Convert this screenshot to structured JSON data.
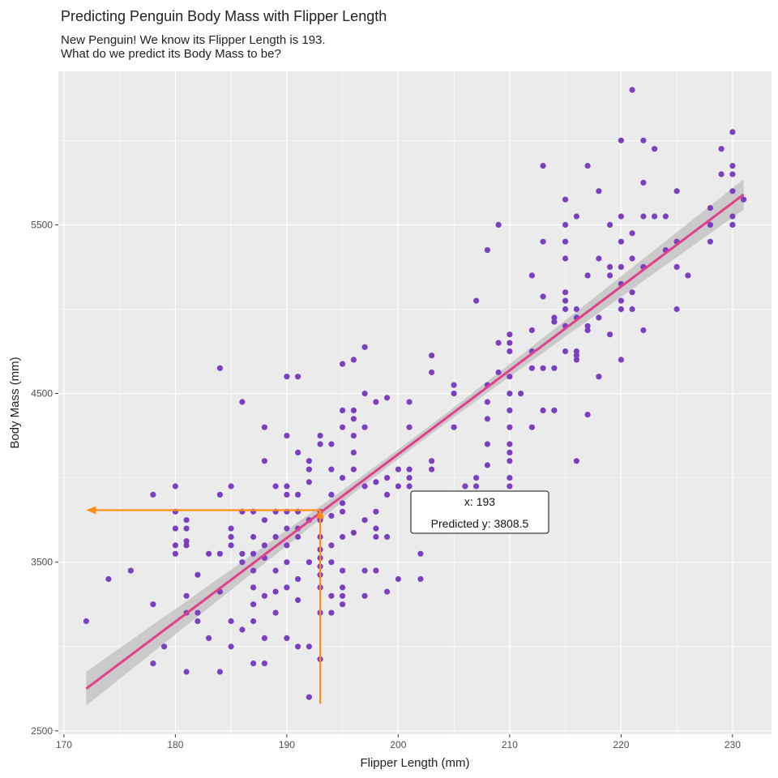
{
  "chart_data": {
    "type": "scatter",
    "title": "Predicting Penguin Body Mass with Flipper Length",
    "subtitle_lines": [
      "New Penguin! We know its Flipper Length is 193.",
      "What do we predict its Body Mass to be?"
    ],
    "xlabel": "Flipper Length (mm)",
    "ylabel": "Body Mass (mm)",
    "xlim": [
      169.5,
      233.5
    ],
    "ylim": [
      2480,
      6410
    ],
    "x_ticks": [
      170,
      180,
      190,
      200,
      210,
      220,
      230
    ],
    "y_ticks": [
      2500,
      3500,
      4500,
      5500
    ],
    "x_tick_labels": [
      "170",
      "180",
      "190",
      "200",
      "210",
      "220",
      "230"
    ],
    "y_tick_labels": [
      "2500",
      "3500",
      "4500",
      "5500"
    ],
    "grid": true,
    "colors": {
      "panel_bg": "#ebebeb",
      "grid": "#ffffff",
      "points": "#7b3fbf",
      "regression_line": "#e0408a",
      "confidence_band": "#c4c4c4",
      "prediction_arrows": "#ff8c1a"
    },
    "regression": {
      "x": [
        172,
        231
      ],
      "y": [
        2750,
        5680
      ],
      "band_halfwidth_ends": [
        100,
        90
      ],
      "band_halfwidth_center": 28
    },
    "prediction": {
      "x": 193,
      "y": 3808.5,
      "arrow_left_to_x": 172,
      "arrow_start_y": 2660
    },
    "annotation": {
      "line1": "x: 193",
      "line2": "Predicted y: 3808.5"
    },
    "points": [
      [
        172,
        3150
      ],
      [
        174,
        3400
      ],
      [
        176,
        3450
      ],
      [
        178,
        2900
      ],
      [
        178,
        3250
      ],
      [
        178,
        3900
      ],
      [
        179,
        3000
      ],
      [
        180,
        3550
      ],
      [
        180,
        3600
      ],
      [
        180,
        3700
      ],
      [
        180,
        3800
      ],
      [
        180,
        3950
      ],
      [
        181,
        2850
      ],
      [
        181,
        3200
      ],
      [
        181,
        3300
      ],
      [
        181,
        3600
      ],
      [
        181,
        3625
      ],
      [
        181,
        3700
      ],
      [
        181,
        3750
      ],
      [
        182,
        3150
      ],
      [
        182,
        3200
      ],
      [
        182,
        3425
      ],
      [
        183,
        3050
      ],
      [
        183,
        3550
      ],
      [
        184,
        2850
      ],
      [
        184,
        3325
      ],
      [
        184,
        3550
      ],
      [
        184,
        3900
      ],
      [
        184,
        4650
      ],
      [
        185,
        3000
      ],
      [
        185,
        3150
      ],
      [
        185,
        3600
      ],
      [
        185,
        3650
      ],
      [
        185,
        3700
      ],
      [
        185,
        3950
      ],
      [
        186,
        3100
      ],
      [
        186,
        3500
      ],
      [
        186,
        3550
      ],
      [
        186,
        3800
      ],
      [
        186,
        4450
      ],
      [
        187,
        2900
      ],
      [
        187,
        3150
      ],
      [
        187,
        3250
      ],
      [
        187,
        3350
      ],
      [
        187,
        3450
      ],
      [
        187,
        3550
      ],
      [
        187,
        3650
      ],
      [
        187,
        3800
      ],
      [
        188,
        2900
      ],
      [
        188,
        3050
      ],
      [
        188,
        3300
      ],
      [
        188,
        3525
      ],
      [
        188,
        3600
      ],
      [
        188,
        3750
      ],
      [
        188,
        4100
      ],
      [
        188,
        4300
      ],
      [
        189,
        3200
      ],
      [
        189,
        3325
      ],
      [
        189,
        3450
      ],
      [
        189,
        3650
      ],
      [
        189,
        3800
      ],
      [
        189,
        3950
      ],
      [
        190,
        3050
      ],
      [
        190,
        3350
      ],
      [
        190,
        3500
      ],
      [
        190,
        3600
      ],
      [
        190,
        3700
      ],
      [
        190,
        3800
      ],
      [
        190,
        3900
      ],
      [
        190,
        3950
      ],
      [
        190,
        4250
      ],
      [
        190,
        4600
      ],
      [
        191,
        3000
      ],
      [
        191,
        3275
      ],
      [
        191,
        3400
      ],
      [
        191,
        3650
      ],
      [
        191,
        3700
      ],
      [
        191,
        3800
      ],
      [
        191,
        3900
      ],
      [
        191,
        4150
      ],
      [
        191,
        4600
      ],
      [
        192,
        2700
      ],
      [
        192,
        3000
      ],
      [
        192,
        3500
      ],
      [
        192,
        3750
      ],
      [
        192,
        3975
      ],
      [
        192,
        4050
      ],
      [
        192,
        4100
      ],
      [
        193,
        2925
      ],
      [
        193,
        3200
      ],
      [
        193,
        3350
      ],
      [
        193,
        3425
      ],
      [
        193,
        3475
      ],
      [
        193,
        3525
      ],
      [
        193,
        3575
      ],
      [
        193,
        3650
      ],
      [
        193,
        3750
      ],
      [
        193,
        3800
      ],
      [
        193,
        4200
      ],
      [
        193,
        4250
      ],
      [
        194,
        3200
      ],
      [
        194,
        3300
      ],
      [
        194,
        3500
      ],
      [
        194,
        3600
      ],
      [
        194,
        3775
      ],
      [
        194,
        3900
      ],
      [
        194,
        4050
      ],
      [
        194,
        4200
      ],
      [
        195,
        3250
      ],
      [
        195,
        3300
      ],
      [
        195,
        3350
      ],
      [
        195,
        3450
      ],
      [
        195,
        3650
      ],
      [
        195,
        3800
      ],
      [
        195,
        3850
      ],
      [
        195,
        4000
      ],
      [
        195,
        4300
      ],
      [
        195,
        4400
      ],
      [
        195,
        4675
      ],
      [
        196,
        3675
      ],
      [
        196,
        4050
      ],
      [
        196,
        4150
      ],
      [
        196,
        4250
      ],
      [
        196,
        4350
      ],
      [
        196,
        4400
      ],
      [
        196,
        4700
      ],
      [
        197,
        3300
      ],
      [
        197,
        3450
      ],
      [
        197,
        3750
      ],
      [
        197,
        3950
      ],
      [
        197,
        4300
      ],
      [
        197,
        4500
      ],
      [
        197,
        4775
      ],
      [
        198,
        3450
      ],
      [
        198,
        3650
      ],
      [
        198,
        3700
      ],
      [
        198,
        3800
      ],
      [
        198,
        3975
      ],
      [
        198,
        4450
      ],
      [
        199,
        3325
      ],
      [
        199,
        3650
      ],
      [
        199,
        3900
      ],
      [
        199,
        4000
      ],
      [
        199,
        4475
      ],
      [
        200,
        3400
      ],
      [
        200,
        3950
      ],
      [
        200,
        4050
      ],
      [
        201,
        3950
      ],
      [
        201,
        4000
      ],
      [
        201,
        4050
      ],
      [
        201,
        4300
      ],
      [
        201,
        4450
      ],
      [
        202,
        3400
      ],
      [
        202,
        3550
      ],
      [
        203,
        4050
      ],
      [
        203,
        4100
      ],
      [
        203,
        4625
      ],
      [
        203,
        4725
      ],
      [
        205,
        4300
      ],
      [
        205,
        4500
      ],
      [
        205,
        4550
      ],
      [
        206,
        3950
      ],
      [
        207,
        3950
      ],
      [
        207,
        4000
      ],
      [
        207,
        5050
      ],
      [
        208,
        4075
      ],
      [
        208,
        4200
      ],
      [
        208,
        4350
      ],
      [
        208,
        4450
      ],
      [
        208,
        4550
      ],
      [
        208,
        5350
      ],
      [
        209,
        3900
      ],
      [
        209,
        4625
      ],
      [
        209,
        4800
      ],
      [
        209,
        5500
      ],
      [
        210,
        3950
      ],
      [
        210,
        4000
      ],
      [
        210,
        4100
      ],
      [
        210,
        4150
      ],
      [
        210,
        4200
      ],
      [
        210,
        4300
      ],
      [
        210,
        4400
      ],
      [
        210,
        4500
      ],
      [
        210,
        4600
      ],
      [
        210,
        4750
      ],
      [
        210,
        4800
      ],
      [
        210,
        4850
      ],
      [
        211,
        4500
      ],
      [
        212,
        4300
      ],
      [
        212,
        4650
      ],
      [
        212,
        4750
      ],
      [
        212,
        4875
      ],
      [
        212,
        5200
      ],
      [
        213,
        4400
      ],
      [
        213,
        4650
      ],
      [
        213,
        5075
      ],
      [
        213,
        5400
      ],
      [
        213,
        5850
      ],
      [
        214,
        4400
      ],
      [
        214,
        4650
      ],
      [
        214,
        4925
      ],
      [
        214,
        4950
      ],
      [
        215,
        4750
      ],
      [
        215,
        4900
      ],
      [
        215,
        5000
      ],
      [
        215,
        5050
      ],
      [
        215,
        5100
      ],
      [
        215,
        5300
      ],
      [
        215,
        5400
      ],
      [
        215,
        5500
      ],
      [
        215,
        5650
      ],
      [
        216,
        4100
      ],
      [
        216,
        4700
      ],
      [
        216,
        4725
      ],
      [
        216,
        4750
      ],
      [
        216,
        4950
      ],
      [
        216,
        5000
      ],
      [
        216,
        5550
      ],
      [
        217,
        4375
      ],
      [
        217,
        4875
      ],
      [
        217,
        4900
      ],
      [
        217,
        5200
      ],
      [
        217,
        5850
      ],
      [
        218,
        4600
      ],
      [
        218,
        4950
      ],
      [
        218,
        5300
      ],
      [
        218,
        5700
      ],
      [
        219,
        4850
      ],
      [
        219,
        5200
      ],
      [
        219,
        5250
      ],
      [
        219,
        5500
      ],
      [
        220,
        4700
      ],
      [
        220,
        5000
      ],
      [
        220,
        5050
      ],
      [
        220,
        5150
      ],
      [
        220,
        5250
      ],
      [
        220,
        5400
      ],
      [
        220,
        5550
      ],
      [
        220,
        6000
      ],
      [
        221,
        5000
      ],
      [
        221,
        5100
      ],
      [
        221,
        5300
      ],
      [
        221,
        5450
      ],
      [
        221,
        6300
      ],
      [
        222,
        4875
      ],
      [
        222,
        5250
      ],
      [
        222,
        5550
      ],
      [
        222,
        5750
      ],
      [
        222,
        6000
      ],
      [
        223,
        5550
      ],
      [
        223,
        5950
      ],
      [
        224,
        5350
      ],
      [
        224,
        5550
      ],
      [
        225,
        5000
      ],
      [
        225,
        5250
      ],
      [
        225,
        5400
      ],
      [
        225,
        5700
      ],
      [
        226,
        5200
      ],
      [
        228,
        5400
      ],
      [
        228,
        5500
      ],
      [
        228,
        5600
      ],
      [
        229,
        5800
      ],
      [
        229,
        5950
      ],
      [
        230,
        5500
      ],
      [
        230,
        5550
      ],
      [
        230,
        5700
      ],
      [
        230,
        5800
      ],
      [
        230,
        5850
      ],
      [
        230,
        6050
      ],
      [
        231,
        5650
      ]
    ]
  }
}
